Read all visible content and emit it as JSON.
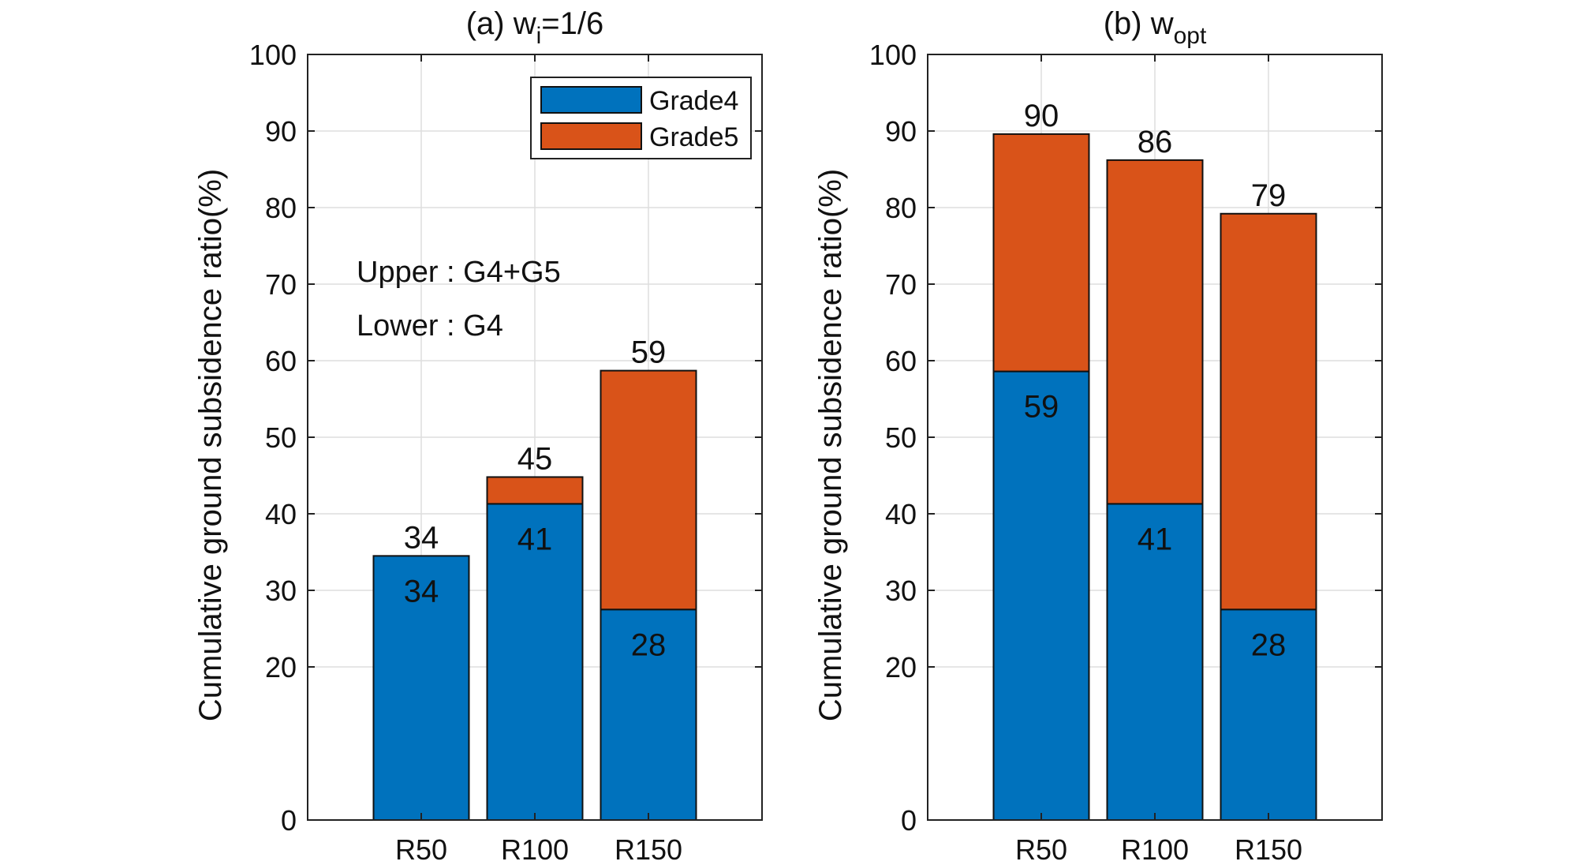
{
  "colors": {
    "grade4": "#0072BD",
    "grade5": "#D95319",
    "grid": "#dedede",
    "axis": "#222222"
  },
  "chart_data": [
    {
      "type": "bar",
      "stacked": true,
      "title": "(a) w",
      "title_sub": "i",
      "title_suffix": "=1/6",
      "ylabel": "Cumulative ground subsidence ratio(%)",
      "xlabel": "",
      "ylim": [
        0,
        100
      ],
      "yticks": [
        "0",
        "20",
        "30",
        "40",
        "50",
        "60",
        "70",
        "80",
        "90",
        "100"
      ],
      "yticks_values": [
        0,
        20,
        30,
        40,
        50,
        60,
        70,
        80,
        90,
        100
      ],
      "categories": [
        "R50",
        "R100",
        "R150"
      ],
      "series": [
        {
          "name": "Grade4",
          "values": [
            34.5,
            41.3,
            27.5
          ]
        },
        {
          "name": "Grade5",
          "values": [
            0,
            3.5,
            31.2
          ]
        }
      ],
      "top_labels": [
        "34",
        "45",
        "59"
      ],
      "inner_labels": [
        "34",
        "41",
        "28"
      ],
      "legend": [
        "Grade4",
        "Grade5"
      ],
      "legend_position": "top-right",
      "annotations": [
        "Upper : G4+G5",
        "Lower : G4"
      ],
      "grid": true
    },
    {
      "type": "bar",
      "stacked": true,
      "title": "(b) w",
      "title_sub": "opt",
      "title_suffix": "",
      "ylabel": "Cumulative ground subsidence ratio(%)",
      "xlabel": "",
      "ylim": [
        0,
        100
      ],
      "yticks": [
        "0",
        "20",
        "30",
        "40",
        "50",
        "60",
        "70",
        "80",
        "90",
        "100"
      ],
      "yticks_values": [
        0,
        20,
        30,
        40,
        50,
        60,
        70,
        80,
        90,
        100
      ],
      "categories": [
        "R50",
        "R100",
        "R150"
      ],
      "series": [
        {
          "name": "Grade4",
          "values": [
            58.6,
            41.3,
            27.5
          ]
        },
        {
          "name": "Grade5",
          "values": [
            31.0,
            44.9,
            51.7
          ]
        }
      ],
      "top_labels": [
        "90",
        "86",
        "79"
      ],
      "inner_labels": [
        "59",
        "41",
        "28"
      ],
      "grid": true
    }
  ]
}
